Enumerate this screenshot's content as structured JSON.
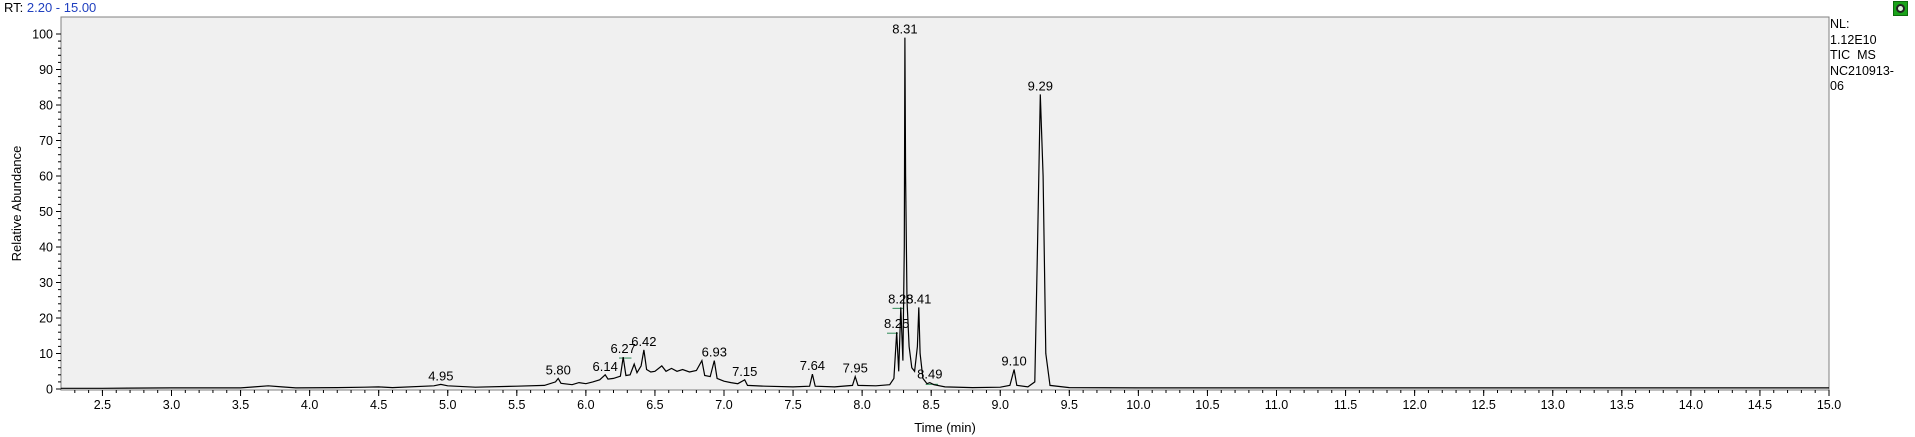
{
  "header": {
    "rt_prefix": "RT:",
    "rt_range": "2.20 - 15.00"
  },
  "info": {
    "nl_label": "NL:",
    "nl_value": "1.12E10",
    "scan_type": "TIC  MS",
    "file_line1": "NC210913-",
    "file_line2": "06"
  },
  "colors": {
    "trace": "#000000",
    "plot_bg": "#f0f0f0",
    "baseline_marker": "#2e8b57",
    "rt_value": "#1f3fbf",
    "corner_icon": "#1aa31a"
  },
  "icons": {
    "corner": "chromatogram-settings-icon"
  },
  "chart_data": {
    "type": "line",
    "title": "",
    "xlabel": "Time (min)",
    "ylabel": "Relative Abundance",
    "xlim": [
      2.2,
      15.0
    ],
    "ylim": [
      0,
      100
    ],
    "xticks": [
      "2.5",
      "3.0",
      "3.5",
      "4.0",
      "4.5",
      "5.0",
      "5.5",
      "6.0",
      "6.5",
      "7.0",
      "7.5",
      "8.0",
      "8.5",
      "9.0",
      "9.5",
      "10.0",
      "10.5",
      "11.0",
      "11.5",
      "12.0",
      "12.5",
      "13.0",
      "13.5",
      "14.0",
      "14.5",
      "15.0"
    ],
    "yticks": [
      "0",
      "10",
      "20",
      "30",
      "40",
      "50",
      "60",
      "70",
      "80",
      "90",
      "100"
    ],
    "grid": false,
    "series": [
      {
        "values": [
          [
            2.2,
            0.2
          ],
          [
            2.5,
            0.2
          ],
          [
            3.0,
            0.3
          ],
          [
            3.5,
            0.3
          ],
          [
            3.6,
            0.6
          ],
          [
            3.7,
            0.9
          ],
          [
            3.8,
            0.6
          ],
          [
            3.9,
            0.3
          ],
          [
            4.2,
            0.4
          ],
          [
            4.4,
            0.5
          ],
          [
            4.5,
            0.6
          ],
          [
            4.6,
            0.4
          ],
          [
            4.9,
            0.9
          ],
          [
            4.95,
            1.3
          ],
          [
            5.0,
            0.9
          ],
          [
            5.2,
            0.5
          ],
          [
            5.5,
            0.8
          ],
          [
            5.7,
            1.0
          ],
          [
            5.78,
            2.0
          ],
          [
            5.8,
            3.0
          ],
          [
            5.82,
            1.6
          ],
          [
            5.9,
            1.2
          ],
          [
            5.95,
            1.8
          ],
          [
            6.0,
            1.5
          ],
          [
            6.05,
            2.0
          ],
          [
            6.1,
            2.6
          ],
          [
            6.14,
            4.0
          ],
          [
            6.16,
            2.8
          ],
          [
            6.2,
            3.0
          ],
          [
            6.25,
            3.6
          ],
          [
            6.27,
            9.0
          ],
          [
            6.29,
            3.8
          ],
          [
            6.32,
            4.0
          ],
          [
            6.35,
            7.0
          ],
          [
            6.37,
            4.6
          ],
          [
            6.4,
            6.5
          ],
          [
            6.42,
            11.0
          ],
          [
            6.44,
            5.5
          ],
          [
            6.47,
            4.8
          ],
          [
            6.5,
            5.0
          ],
          [
            6.55,
            6.5
          ],
          [
            6.58,
            5.0
          ],
          [
            6.62,
            5.8
          ],
          [
            6.66,
            5.0
          ],
          [
            6.7,
            5.5
          ],
          [
            6.75,
            4.8
          ],
          [
            6.8,
            5.2
          ],
          [
            6.84,
            8.0
          ],
          [
            6.86,
            3.8
          ],
          [
            6.9,
            3.5
          ],
          [
            6.93,
            8.0
          ],
          [
            6.95,
            3.0
          ],
          [
            7.0,
            2.2
          ],
          [
            7.05,
            1.8
          ],
          [
            7.1,
            1.5
          ],
          [
            7.15,
            2.6
          ],
          [
            7.17,
            1.0
          ],
          [
            7.3,
            0.8
          ],
          [
            7.5,
            0.6
          ],
          [
            7.62,
            0.8
          ],
          [
            7.64,
            4.2
          ],
          [
            7.66,
            0.8
          ],
          [
            7.8,
            0.6
          ],
          [
            7.93,
            1.0
          ],
          [
            7.95,
            3.5
          ],
          [
            7.97,
            1.0
          ],
          [
            8.1,
            0.9
          ],
          [
            8.2,
            1.2
          ],
          [
            8.23,
            3.0
          ],
          [
            8.25,
            16.0
          ],
          [
            8.265,
            5.0
          ],
          [
            8.28,
            23.0
          ],
          [
            8.295,
            8.0
          ],
          [
            8.305,
            40.0
          ],
          [
            8.31,
            99.0
          ],
          [
            8.315,
            60.0
          ],
          [
            8.325,
            25.0
          ],
          [
            8.34,
            12.0
          ],
          [
            8.36,
            6.0
          ],
          [
            8.38,
            5.0
          ],
          [
            8.4,
            12.0
          ],
          [
            8.41,
            23.0
          ],
          [
            8.42,
            10.0
          ],
          [
            8.44,
            3.0
          ],
          [
            8.47,
            1.5
          ],
          [
            8.49,
            1.8
          ],
          [
            8.52,
            1.2
          ],
          [
            8.6,
            0.6
          ],
          [
            8.8,
            0.4
          ],
          [
            9.0,
            0.5
          ],
          [
            9.07,
            1.0
          ],
          [
            9.1,
            5.5
          ],
          [
            9.12,
            1.0
          ],
          [
            9.2,
            0.6
          ],
          [
            9.25,
            2.0
          ],
          [
            9.27,
            40.0
          ],
          [
            9.29,
            83.0
          ],
          [
            9.31,
            60.0
          ],
          [
            9.33,
            10.0
          ],
          [
            9.36,
            1.0
          ],
          [
            9.5,
            0.4
          ],
          [
            10.0,
            0.3
          ],
          [
            11.0,
            0.3
          ],
          [
            12.0,
            0.3
          ],
          [
            13.0,
            0.3
          ],
          [
            14.0,
            0.3
          ],
          [
            15.0,
            0.3
          ]
        ]
      }
    ],
    "peak_labels": [
      {
        "x": 4.95,
        "y": 1.3,
        "text": "4.95"
      },
      {
        "x": 5.8,
        "y": 3.0,
        "text": "5.80"
      },
      {
        "x": 6.14,
        "y": 4.0,
        "text": "6.14"
      },
      {
        "x": 6.27,
        "y": 9.0,
        "text": "6.27"
      },
      {
        "x": 6.42,
        "y": 11.0,
        "text": "6.42"
      },
      {
        "x": 6.93,
        "y": 8.0,
        "text": "6.93"
      },
      {
        "x": 7.15,
        "y": 2.6,
        "text": "7.15"
      },
      {
        "x": 7.64,
        "y": 4.2,
        "text": "7.64"
      },
      {
        "x": 7.95,
        "y": 3.5,
        "text": "7.95"
      },
      {
        "x": 8.25,
        "y": 16.0,
        "text": "8.25"
      },
      {
        "x": 8.28,
        "y": 23.0,
        "text": "8.28"
      },
      {
        "x": 8.31,
        "y": 99.0,
        "text": "8.31"
      },
      {
        "x": 8.41,
        "y": 23.0,
        "text": "8.41"
      },
      {
        "x": 8.49,
        "y": 1.8,
        "text": "8.49"
      },
      {
        "x": 9.1,
        "y": 5.5,
        "text": "9.10"
      },
      {
        "x": 9.29,
        "y": 83.0,
        "text": "9.29"
      }
    ]
  }
}
